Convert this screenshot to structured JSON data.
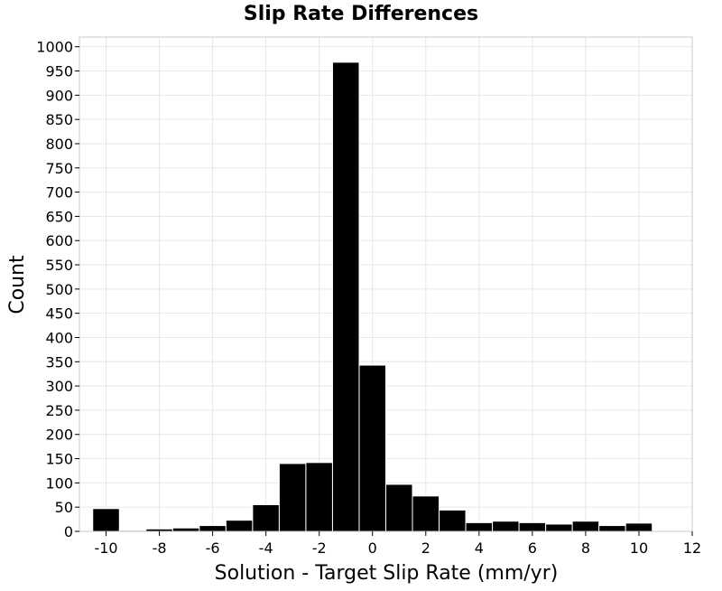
{
  "chart_data": {
    "type": "bar",
    "title": "Slip Rate Differences",
    "xlabel": "Solution - Target Slip Rate (mm/yr)",
    "ylabel": "Count",
    "xlim": [
      -11,
      12
    ],
    "ylim": [
      0,
      1020
    ],
    "xticks": [
      -10,
      -8,
      -6,
      -4,
      -2,
      0,
      2,
      4,
      6,
      8,
      10,
      12
    ],
    "yticks": [
      0,
      50,
      100,
      150,
      200,
      250,
      300,
      350,
      400,
      450,
      500,
      550,
      600,
      650,
      700,
      750,
      800,
      850,
      900,
      950,
      1000
    ],
    "bin_width": 1,
    "bin_centers": [
      -10,
      -9,
      -8,
      -7,
      -6,
      -5,
      -4,
      -3,
      -2,
      -1,
      0,
      1,
      2,
      3,
      4,
      5,
      6,
      7,
      8,
      9,
      10
    ],
    "values": [
      47,
      2,
      5,
      7,
      12,
      23,
      55,
      140,
      142,
      968,
      343,
      97,
      73,
      44,
      18,
      21,
      18,
      15,
      21,
      12,
      17
    ],
    "grid": true,
    "colors": {
      "bar": "#000000",
      "grid": "#e6e6e6",
      "border": "#c8c8c8"
    }
  }
}
